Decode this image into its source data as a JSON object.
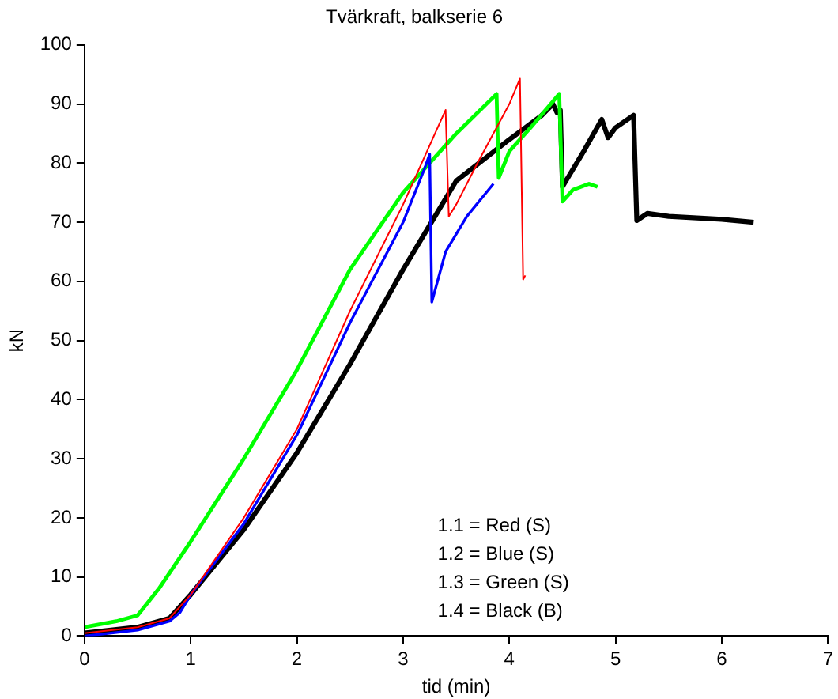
{
  "chart_data": {
    "type": "line",
    "title": "Tvärkraft, balkserie 6",
    "xlabel": "tid (min)",
    "ylabel": "kN",
    "xlim": [
      0,
      7
    ],
    "xticks": [
      0,
      1,
      2,
      3,
      4,
      5,
      6,
      7
    ],
    "ylim": [
      0,
      100
    ],
    "yticks": [
      0,
      10,
      20,
      30,
      40,
      50,
      60,
      70,
      80,
      90,
      100
    ],
    "grid": false,
    "legend": false,
    "marker": "none",
    "line_style": "solid",
    "annotations": [
      "1.1 = Red (S)",
      "1.2 = Blue (S)",
      "1.3 = Green (S)",
      "1.4 = Black (B)"
    ],
    "series": [
      {
        "color": "#ff0000",
        "x": [
          0,
          0.5,
          0.8,
          1,
          1.5,
          2,
          2.5,
          3,
          3.3,
          3.4,
          3.43,
          3.5,
          3.7,
          4,
          4.1,
          4.13,
          4.15
        ],
        "values": [
          0.5,
          1.5,
          3,
          7,
          20,
          35,
          55,
          73,
          85,
          89,
          71,
          73,
          80,
          90,
          94.3,
          60.3,
          61
        ]
      },
      {
        "color": "#0000ff",
        "x": [
          0,
          0.5,
          0.8,
          0.9,
          1,
          1.5,
          2,
          2.5,
          3,
          3.2,
          3.25,
          3.27,
          3.4,
          3.6,
          3.85
        ],
        "values": [
          0,
          1,
          2.5,
          4,
          7,
          19,
          34,
          53,
          70,
          79,
          81.5,
          56.5,
          65,
          71,
          76.5
        ]
      },
      {
        "color": "#00ff00",
        "x": [
          0,
          0.3,
          0.5,
          0.7,
          1,
          1.5,
          2,
          2.5,
          3,
          3.5,
          3.88,
          3.9,
          4,
          4.2,
          4.47,
          4.5,
          4.6,
          4.75,
          4.83
        ],
        "values": [
          1.5,
          2.5,
          3.5,
          8,
          16,
          30,
          45,
          62,
          75,
          85,
          91.7,
          77.5,
          82,
          86,
          91.7,
          73.5,
          75.5,
          76.5,
          76
        ]
      },
      {
        "color": "#000000",
        "x": [
          0,
          0.5,
          0.8,
          1,
          1.5,
          2,
          2.5,
          3,
          3.3,
          3.5,
          4,
          4.3,
          4.41,
          4.45,
          4.48,
          4.5,
          4.7,
          4.87,
          4.93,
          5,
          5.17,
          5.2,
          5.3,
          5.5,
          6,
          6.3
        ],
        "values": [
          0.5,
          1.5,
          3,
          7,
          18,
          31,
          46,
          62,
          71,
          77,
          84,
          88,
          90,
          88.5,
          89,
          76,
          82,
          87.4,
          84.3,
          86,
          88.1,
          70.3,
          71.5,
          71,
          70.5,
          70
        ]
      }
    ]
  }
}
